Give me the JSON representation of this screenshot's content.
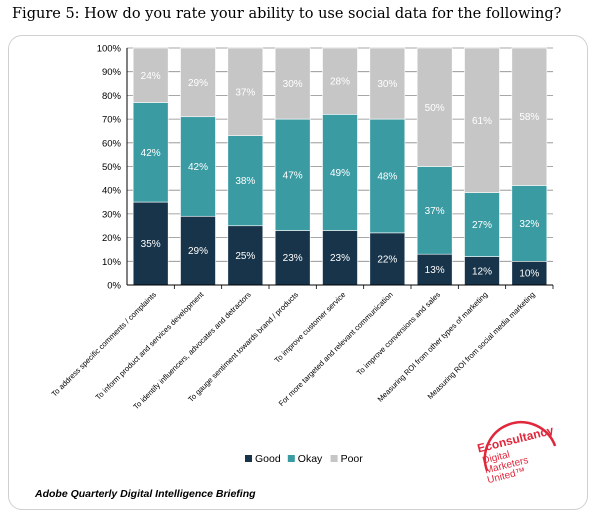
{
  "figure_title": "Figure 5: How do you rate your ability to use social data for the following?",
  "source_note": "Adobe Quarterly Digital Intelligence Briefing",
  "logo": {
    "brand": "Econsultancy",
    "line1": "Digital",
    "line2": "Marketers",
    "line3": "United™"
  },
  "colors": {
    "good": "#17344a",
    "okay": "#3a9ba3",
    "poor": "#c6c6c6",
    "logo_red": "#e0283c"
  },
  "chart_data": {
    "type": "bar",
    "stacked": true,
    "title": "",
    "xlabel": "",
    "ylabel": "",
    "ylim": [
      0,
      100
    ],
    "y_ticks": [
      "0%",
      "10%",
      "20%",
      "30%",
      "40%",
      "50%",
      "60%",
      "70%",
      "80%",
      "90%",
      "100%"
    ],
    "legend_position": "bottom",
    "categories": [
      "To address specific comments / complaints",
      "To inform product and services development",
      "To identify influencers, advocates and detractors",
      "To gauge sentiment towards brand / products",
      "To improve customer service",
      "For more targeted and relevant communication",
      "To improve conversions and sales",
      "Measuring ROI from other types of marketing",
      "Measuring ROI from social media marketing"
    ],
    "series": [
      {
        "name": "Good",
        "values": [
          35,
          29,
          25,
          23,
          23,
          22,
          13,
          12,
          10
        ],
        "labels": [
          "35%",
          "29%",
          "25%",
          "23%",
          "23%",
          "22%",
          "13%",
          "12%",
          "10%"
        ]
      },
      {
        "name": "Okay",
        "values": [
          42,
          42,
          38,
          47,
          49,
          48,
          37,
          27,
          32
        ],
        "labels": [
          "42%",
          "42%",
          "38%",
          "47%",
          "49%",
          "48%",
          "37%",
          "27%",
          "32%"
        ]
      },
      {
        "name": "Poor",
        "values": [
          24,
          29,
          37,
          30,
          28,
          30,
          50,
          61,
          58
        ],
        "labels": [
          "24%",
          "29%",
          "37%",
          "30%",
          "28%",
          "30%",
          "50%",
          "61%",
          "58%"
        ]
      }
    ]
  }
}
